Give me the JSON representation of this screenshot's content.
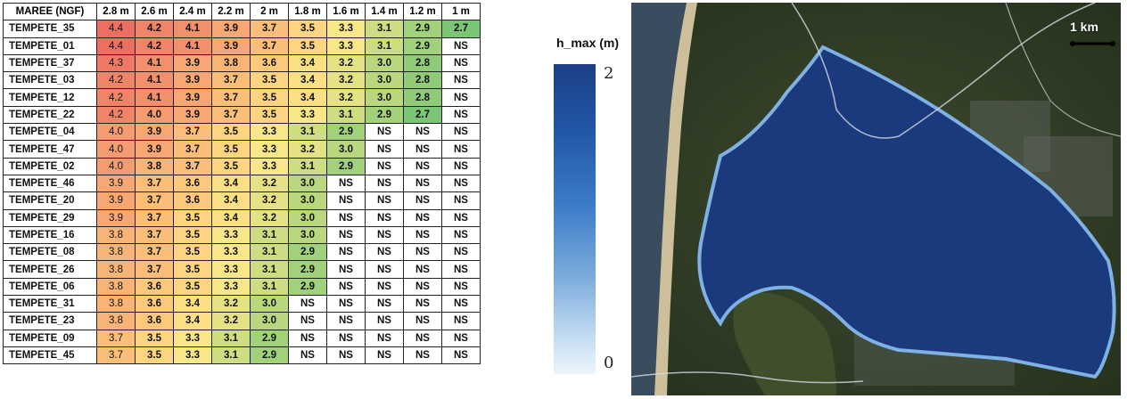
{
  "table": {
    "corner_header": "MAREE (NGF)",
    "columns": [
      "2.8 m",
      "2.6 m",
      "2.4 m",
      "2.2 m",
      "2 m",
      "1.8 m",
      "1.6 m",
      "1.4 m",
      "1.2 m",
      "1 m"
    ],
    "rows": [
      {
        "name": "TEMPETE_35",
        "values": [
          "4.4",
          "4.2",
          "4.1",
          "3.9",
          "3.7",
          "3.5",
          "3.3",
          "3.1",
          "2.9",
          "2.7"
        ]
      },
      {
        "name": "TEMPETE_01",
        "values": [
          "4.4",
          "4.2",
          "4.1",
          "3.9",
          "3.7",
          "3.5",
          "3.3",
          "3.1",
          "2.9",
          "NS"
        ]
      },
      {
        "name": "TEMPETE_37",
        "values": [
          "4.3",
          "4.1",
          "3.9",
          "3.8",
          "3.6",
          "3.4",
          "3.2",
          "3.0",
          "2.8",
          "NS"
        ]
      },
      {
        "name": "TEMPETE_03",
        "values": [
          "4.2",
          "4.1",
          "3.9",
          "3.7",
          "3.5",
          "3.4",
          "3.2",
          "3.0",
          "2.8",
          "NS"
        ]
      },
      {
        "name": "TEMPETE_12",
        "values": [
          "4.2",
          "4.1",
          "3.9",
          "3.7",
          "3.5",
          "3.4",
          "3.2",
          "3.0",
          "2.8",
          "NS"
        ]
      },
      {
        "name": "TEMPETE_22",
        "values": [
          "4.2",
          "4.0",
          "3.9",
          "3.7",
          "3.5",
          "3.3",
          "3.1",
          "2.9",
          "2.7",
          "NS"
        ]
      },
      {
        "name": "TEMPETE_04",
        "values": [
          "4.0",
          "3.9",
          "3.7",
          "3.5",
          "3.3",
          "3.1",
          "2.9",
          "NS",
          "NS",
          "NS"
        ]
      },
      {
        "name": "TEMPETE_47",
        "values": [
          "4.0",
          "3.9",
          "3.7",
          "3.5",
          "3.3",
          "3.2",
          "3.0",
          "NS",
          "NS",
          "NS"
        ]
      },
      {
        "name": "TEMPETE_02",
        "values": [
          "4.0",
          "3.8",
          "3.7",
          "3.5",
          "3.3",
          "3.1",
          "2.9",
          "NS",
          "NS",
          "NS"
        ]
      },
      {
        "name": "TEMPETE_46",
        "values": [
          "3.9",
          "3.7",
          "3.6",
          "3.4",
          "3.2",
          "3.0",
          "NS",
          "NS",
          "NS",
          "NS"
        ]
      },
      {
        "name": "TEMPETE_20",
        "values": [
          "3.9",
          "3.7",
          "3.6",
          "3.4",
          "3.2",
          "3.0",
          "NS",
          "NS",
          "NS",
          "NS"
        ]
      },
      {
        "name": "TEMPETE_29",
        "values": [
          "3.9",
          "3.7",
          "3.5",
          "3.4",
          "3.2",
          "3.0",
          "NS",
          "NS",
          "NS",
          "NS"
        ]
      },
      {
        "name": "TEMPETE_16",
        "values": [
          "3.8",
          "3.7",
          "3.5",
          "3.3",
          "3.1",
          "3.0",
          "NS",
          "NS",
          "NS",
          "NS"
        ]
      },
      {
        "name": "TEMPETE_08",
        "values": [
          "3.8",
          "3.7",
          "3.5",
          "3.3",
          "3.1",
          "2.9",
          "NS",
          "NS",
          "NS",
          "NS"
        ]
      },
      {
        "name": "TEMPETE_26",
        "values": [
          "3.8",
          "3.7",
          "3.5",
          "3.3",
          "3.1",
          "2.9",
          "NS",
          "NS",
          "NS",
          "NS"
        ]
      },
      {
        "name": "TEMPETE_06",
        "values": [
          "3.8",
          "3.6",
          "3.5",
          "3.3",
          "3.1",
          "2.9",
          "NS",
          "NS",
          "NS",
          "NS"
        ]
      },
      {
        "name": "TEMPETE_31",
        "values": [
          "3.8",
          "3.6",
          "3.4",
          "3.2",
          "3.0",
          "NS",
          "NS",
          "NS",
          "NS",
          "NS"
        ]
      },
      {
        "name": "TEMPETE_23",
        "values": [
          "3.8",
          "3.6",
          "3.4",
          "3.2",
          "3.0",
          "NS",
          "NS",
          "NS",
          "NS",
          "NS"
        ]
      },
      {
        "name": "TEMPETE_09",
        "values": [
          "3.7",
          "3.5",
          "3.3",
          "3.1",
          "2.9",
          "NS",
          "NS",
          "NS",
          "NS",
          "NS"
        ]
      },
      {
        "name": "TEMPETE_45",
        "values": [
          "3.7",
          "3.5",
          "3.3",
          "3.1",
          "2.9",
          "NS",
          "NS",
          "NS",
          "NS",
          "NS"
        ]
      }
    ],
    "colors": {
      "4.4": "#ec6f62",
      "4.3": "#ee7a66",
      "4.2": "#f08469",
      "4.1": "#f2906c",
      "4.0": "#f49b70",
      "3.9": "#f6a773",
      "3.8": "#f8b376",
      "3.7": "#fabe79",
      "3.6": "#fcc97c",
      "3.5": "#fdd47f",
      "3.4": "#fbdf84",
      "3.3": "#f8e788",
      "3.2": "#e5e285",
      "3.1": "#cfdd82",
      "3.0": "#b8d77f",
      "2.9": "#a2d17c",
      "2.8": "#8fcb79",
      "2.7": "#7cc576",
      "NS": "#ffffff"
    }
  },
  "colorbar": {
    "title": "h_max (m)",
    "max_label": "2",
    "min_label": "0"
  },
  "map": {
    "scale_label": "1 km"
  }
}
